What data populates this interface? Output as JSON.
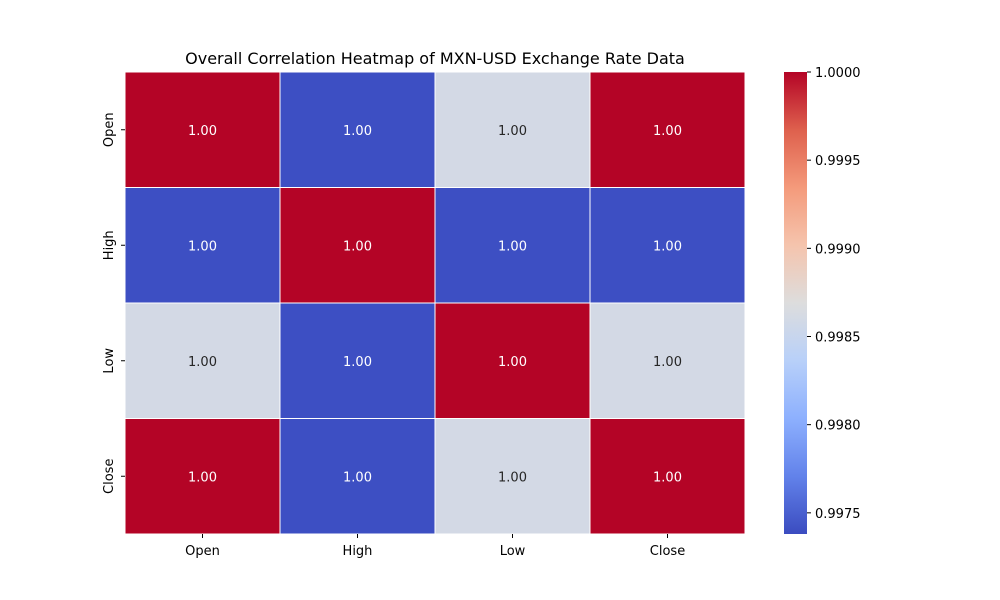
{
  "chart_data": {
    "type": "heatmap",
    "title": "Overall Correlation Heatmap of MXN-USD Exchange Rate Data",
    "xlabel": "",
    "ylabel": "",
    "x_categories": [
      "Open",
      "High",
      "Low",
      "Close"
    ],
    "y_categories": [
      "Open",
      "High",
      "Low",
      "Close"
    ],
    "values": [
      [
        1.0,
        0.9974,
        0.9986,
        1.0
      ],
      [
        0.9974,
        1.0,
        0.9974,
        0.9974
      ],
      [
        0.9986,
        0.9974,
        1.0,
        0.9986
      ],
      [
        1.0,
        0.9974,
        0.9986,
        1.0
      ]
    ],
    "cell_labels": [
      [
        "1.00",
        "1.00",
        "1.00",
        "1.00"
      ],
      [
        "1.00",
        "1.00",
        "1.00",
        "1.00"
      ],
      [
        "1.00",
        "1.00",
        "1.00",
        "1.00"
      ],
      [
        "1.00",
        "1.00",
        "1.00",
        "1.00"
      ]
    ],
    "colormap": "coolwarm",
    "colorbar": {
      "vmin": 0.99738,
      "vmax": 1.0,
      "ticks": [
        0.9975,
        0.998,
        0.9985,
        0.999,
        0.9995,
        1.0
      ],
      "tick_labels": [
        "0.9975",
        "0.9980",
        "0.9985",
        "0.9990",
        "0.9995",
        "1.0000"
      ]
    },
    "grid": true,
    "legend": "colorbar-right"
  }
}
